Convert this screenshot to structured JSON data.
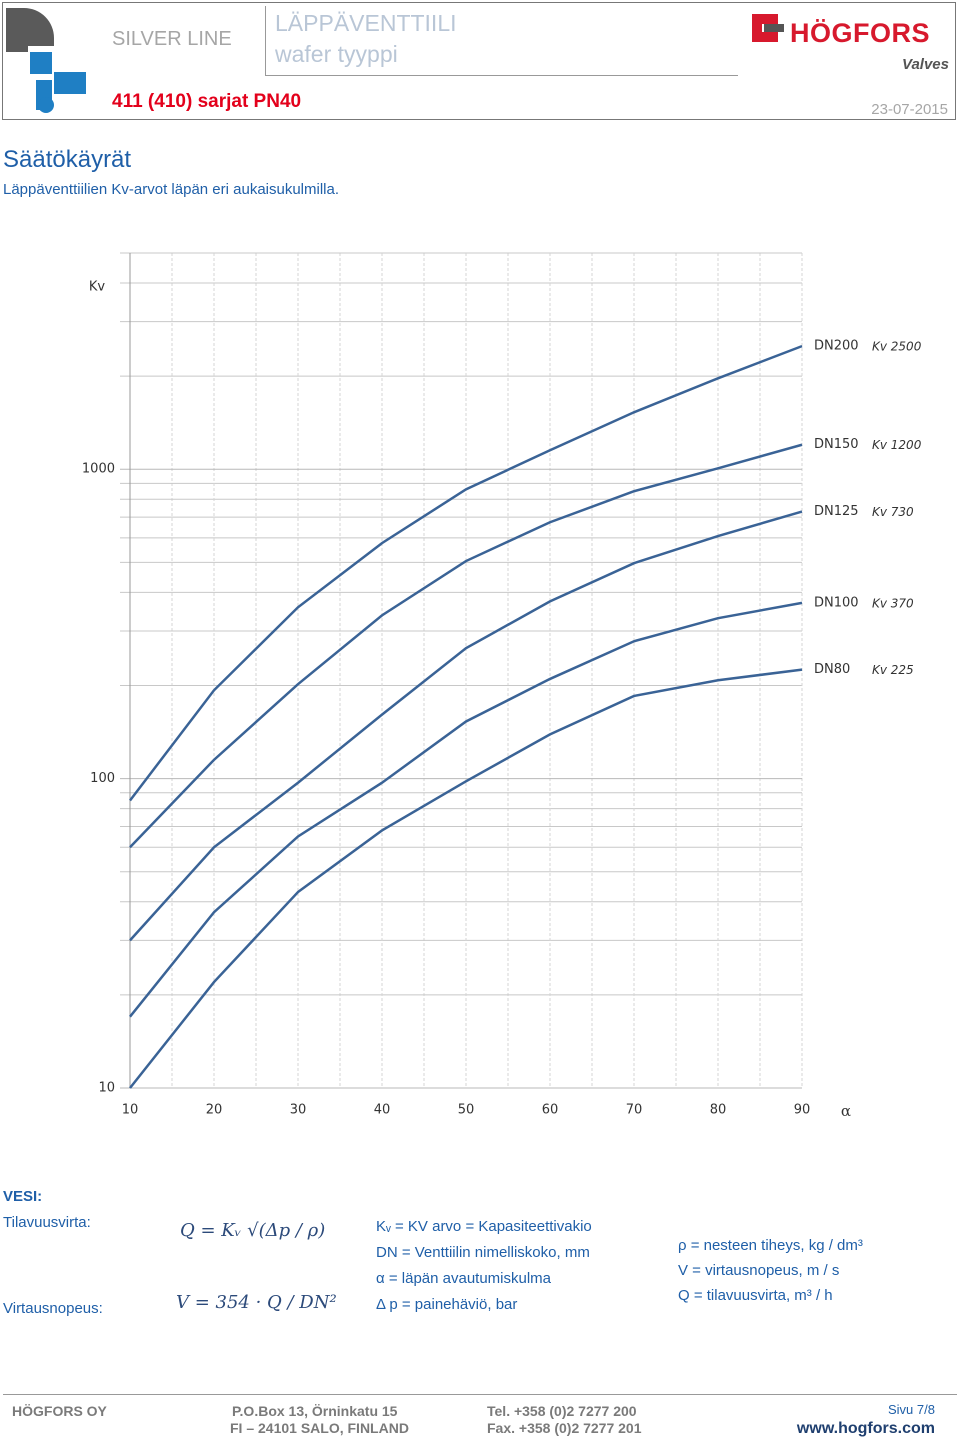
{
  "header": {
    "brand_line": "SILVER LINE",
    "product": "LÄPPÄVENTTIILI",
    "product_type": "wafer tyyppi",
    "series": "411 (410) sarjat PN40",
    "date": "23-07-2015",
    "logo_name": "HÖGFORS",
    "logo_sub": "Valves"
  },
  "heading": {
    "title": "Säätökäyrät",
    "subtitle": "Läppäventtiilien Kv-arvot läpän eri aukaisukulmilla."
  },
  "chart_data": {
    "type": "line",
    "y_label": "Kv",
    "x_label": "α",
    "log_y": true,
    "grid": true,
    "color": "#3a6396",
    "x": [
      10,
      20,
      30,
      40,
      50,
      60,
      70,
      80,
      90
    ],
    "xlim": [
      10,
      90
    ],
    "xticks": [
      10,
      20,
      30,
      40,
      50,
      60,
      70,
      80,
      90
    ],
    "minor_xticks": [
      15,
      25,
      35,
      45,
      55,
      65,
      75,
      85
    ],
    "ylim": [
      10,
      5000
    ],
    "yticks": [
      10,
      100,
      1000
    ],
    "minor_yticks": [
      20,
      30,
      40,
      50,
      60,
      70,
      80,
      90,
      200,
      300,
      400,
      500,
      600,
      700,
      800,
      900,
      2000,
      3000,
      4000,
      5000
    ],
    "series": [
      {
        "name": "DN200",
        "kv_label": "Kv 2500",
        "values": [
          85,
          193,
          358,
          577,
          861,
          1152,
          1528,
          1968,
          2500
        ]
      },
      {
        "name": "DN150",
        "kv_label": "Kv 1200",
        "values": [
          60,
          115,
          202,
          337,
          505,
          674,
          849,
          1007,
          1200
        ]
      },
      {
        "name": "DN125",
        "kv_label": "Kv 730",
        "values": [
          30,
          60,
          97,
          161,
          264,
          374,
          497,
          608,
          730
        ]
      },
      {
        "name": "DN100",
        "kv_label": "Kv 370",
        "values": [
          17,
          37,
          65,
          97,
          153,
          210,
          278,
          330,
          370
        ]
      },
      {
        "name": "DN80",
        "kv_label": "Kv 225",
        "values": [
          10,
          22,
          43,
          68,
          98,
          139,
          185,
          208,
          225
        ]
      }
    ]
  },
  "legend": {
    "heading": "VESI:",
    "rows": [
      {
        "label": "Tilavuusvirta:",
        "formula": "Q = Kᵥ √(Δp / ρ)"
      },
      {
        "label": "Virtausnopeus:",
        "formula": "V = 354 · Q / DN²"
      }
    ],
    "definitions": [
      "Kᵥ = KV arvo = Kapasiteettivakio",
      "DN = Venttiilin nimelliskoko, mm",
      "α = läpän avautumiskulma",
      "Δ p = painehäviö, bar"
    ],
    "units": [
      "ρ = nesteen tiheys, kg / dm³",
      "V = virtausnopeus, m / s",
      "Q = tilavuusvirta, m³ / h"
    ]
  },
  "footer": {
    "company": "HÖGFORS OY",
    "address1": "P.O.Box 13, Örninkatu 15",
    "address2": "FI – 24101 SALO, FINLAND",
    "tel": "Tel.  +358 (0)2 7277 200",
    "fax": "Fax. +358 (0)2 7277 201",
    "page": "Sivu 7/8",
    "web": "www.hogfors.com"
  }
}
